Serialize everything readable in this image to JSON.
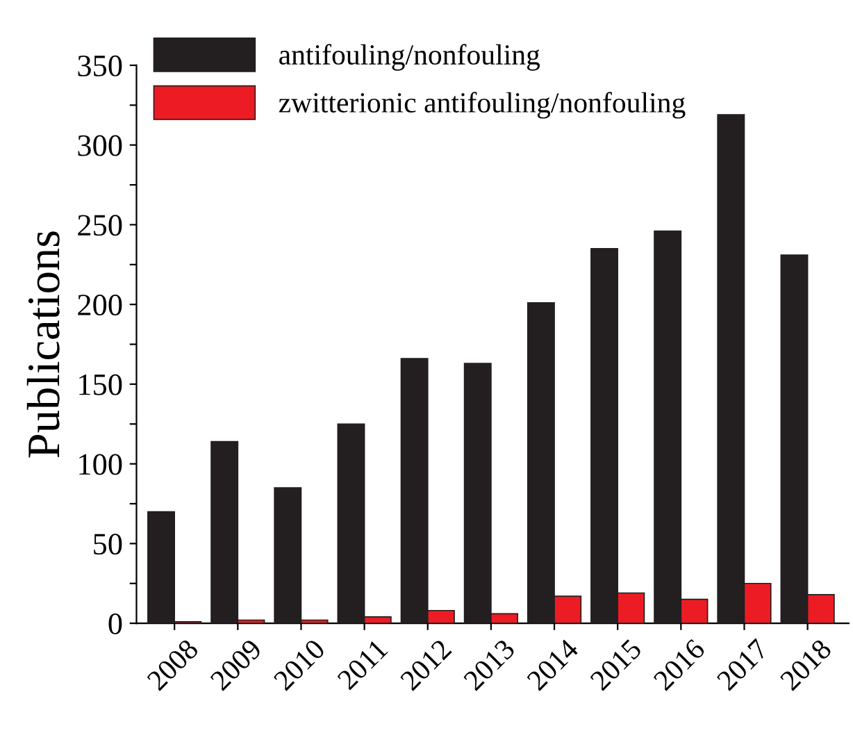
{
  "chart_data": {
    "type": "bar",
    "ylabel": "Publications",
    "categories": [
      "2008",
      "2009",
      "2010",
      "2011",
      "2012",
      "2013",
      "2014",
      "2015",
      "2016",
      "2017",
      "2018"
    ],
    "series": [
      {
        "name": "antifouling/nonfouling",
        "color": "#231f20",
        "values": [
          70,
          114,
          85,
          125,
          166,
          163,
          201,
          235,
          246,
          319,
          231
        ]
      },
      {
        "name": "zwitterionic antifouling/nonfouling",
        "color": "#ed1c24",
        "values": [
          1,
          2,
          2,
          4,
          8,
          6,
          17,
          19,
          15,
          25,
          18
        ]
      }
    ],
    "ylim": [
      0,
      350
    ],
    "yticks": [
      0,
      {
        "value": 25,
        "label": null
      },
      50,
      {
        "value": 75,
        "label": null
      },
      100,
      {
        "value": 125,
        "label": null
      },
      150,
      {
        "value": 175,
        "label": null
      },
      200,
      {
        "value": 225,
        "label": null
      },
      250,
      {
        "value": 275,
        "label": null
      },
      300,
      {
        "value": 325,
        "label": null
      },
      350
    ],
    "grid": false,
    "legend": "top left"
  }
}
